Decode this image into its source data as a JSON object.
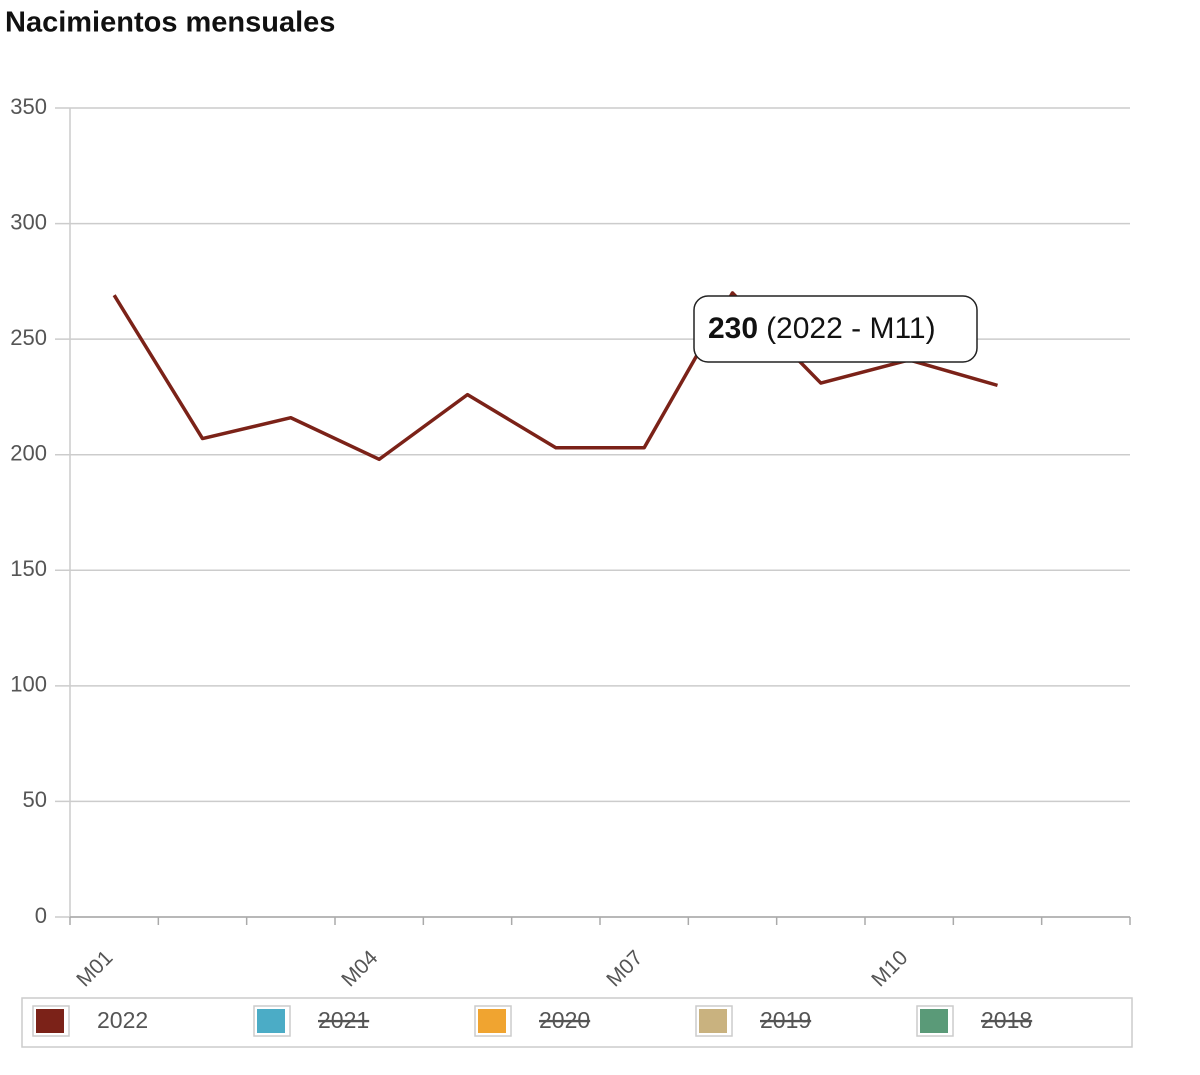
{
  "chart_data": {
    "type": "line",
    "title": "Nacimientos mensuales",
    "categories": [
      "M01",
      null,
      null,
      "M04",
      null,
      null,
      "M07",
      null,
      null,
      "M10",
      null,
      null
    ],
    "series": [
      {
        "name": "2022",
        "color": "#7b2218",
        "values": [
          269,
          207,
          216,
          198,
          226,
          203,
          203,
          270,
          231,
          241,
          230,
          null
        ]
      },
      {
        "name": "2021",
        "color": "#4bacc6",
        "hidden": true
      },
      {
        "name": "2020",
        "color": "#f0a430",
        "hidden": true
      },
      {
        "name": "2019",
        "color": "#c9b27f",
        "hidden": true
      },
      {
        "name": "2018",
        "color": "#5a9a78",
        "hidden": true
      }
    ],
    "ylim": [
      0,
      350
    ],
    "yticks": [
      0,
      50,
      100,
      150,
      200,
      250,
      300,
      350
    ],
    "grid": true,
    "legend": "bottom",
    "tooltip": {
      "value": "230",
      "label": "(2022 - M11)"
    }
  }
}
